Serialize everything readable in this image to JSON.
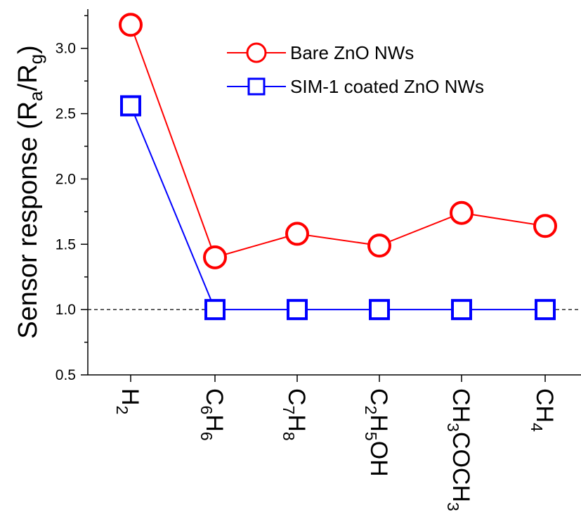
{
  "chart_data": {
    "type": "line",
    "categories": [
      [
        {
          "t": "H"
        },
        {
          "t": "2",
          "sub": true
        }
      ],
      [
        {
          "t": "C"
        },
        {
          "t": "6",
          "sub": true
        },
        {
          "t": "H"
        },
        {
          "t": "6",
          "sub": true
        }
      ],
      [
        {
          "t": "C"
        },
        {
          "t": "7",
          "sub": true
        },
        {
          "t": "H"
        },
        {
          "t": "8",
          "sub": true
        }
      ],
      [
        {
          "t": "C"
        },
        {
          "t": "2",
          "sub": true
        },
        {
          "t": "H"
        },
        {
          "t": "5",
          "sub": true
        },
        {
          "t": "OH"
        }
      ],
      [
        {
          "t": "CH"
        },
        {
          "t": "3",
          "sub": true
        },
        {
          "t": "COCH"
        },
        {
          "t": "3",
          "sub": true
        }
      ],
      [
        {
          "t": "CH"
        },
        {
          "t": "4",
          "sub": true
        }
      ]
    ],
    "series": [
      {
        "name": "Bare ZnO NWs",
        "color": "#ff0000",
        "marker": "circle",
        "values": [
          3.18,
          1.4,
          1.58,
          1.49,
          1.74,
          1.64
        ]
      },
      {
        "name": "SIM-1 coated ZnO NWs",
        "color": "#0000ff",
        "marker": "square",
        "values": [
          2.56,
          1.0,
          1.0,
          1.0,
          1.0,
          1.0
        ]
      }
    ],
    "ylabel": [
      {
        "t": "Sensor response (R"
      },
      {
        "t": "a",
        "sub": true
      },
      {
        "t": "/R"
      },
      {
        "t": "g",
        "sub": true
      },
      {
        "t": ")"
      }
    ],
    "ylim": [
      0.5,
      3.3
    ],
    "yticks": [
      0.5,
      1.0,
      1.5,
      2.0,
      2.5,
      3.0
    ],
    "ytick_labels": [
      "0.5",
      "1.0",
      "1.5",
      "2.0",
      "2.5",
      "3.0"
    ],
    "reference_line": {
      "y": 1.0,
      "style": "dashed",
      "color": "#000000"
    },
    "legend": {
      "position": "top-right",
      "entries": [
        "Bare ZnO NWs",
        "SIM-1 coated ZnO NWs"
      ]
    },
    "grid": false
  }
}
